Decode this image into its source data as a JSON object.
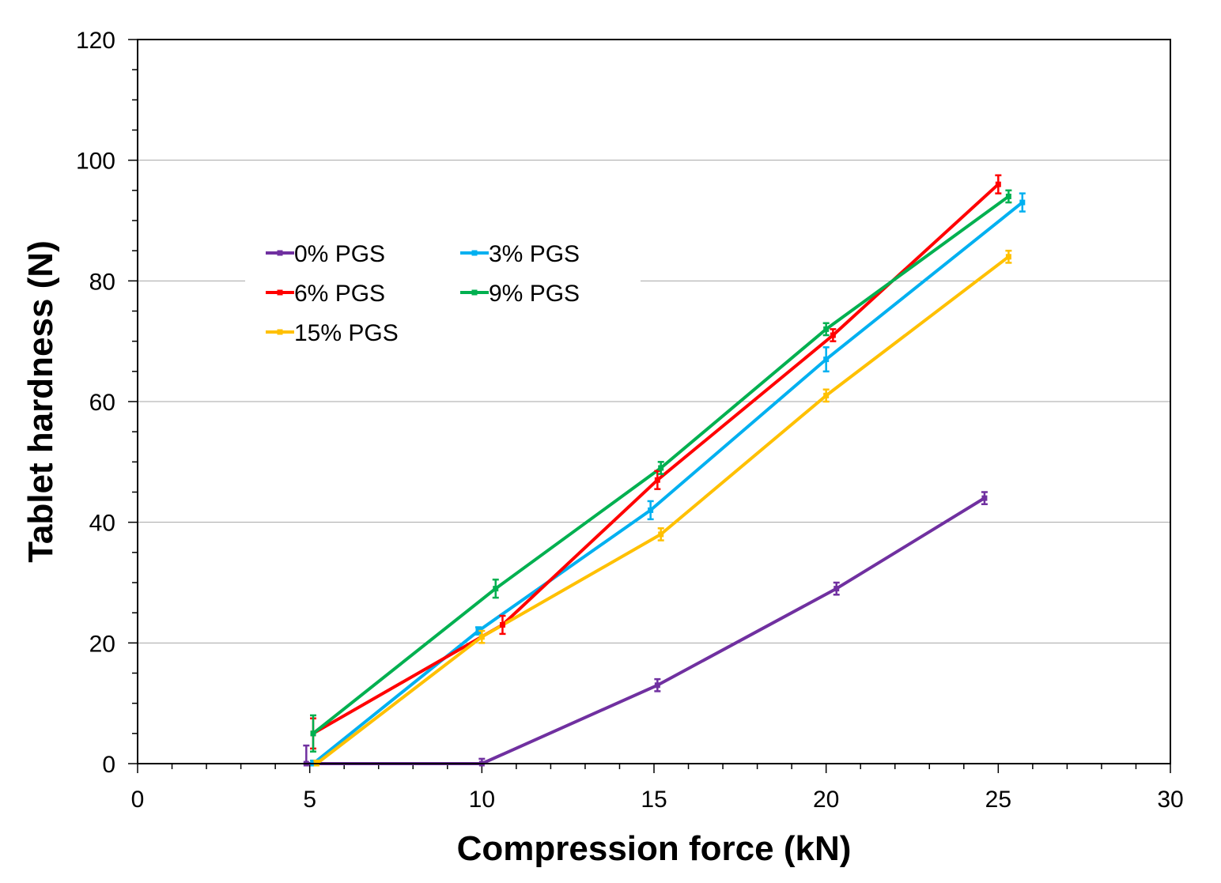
{
  "chart_data": {
    "type": "line",
    "title": "",
    "xlabel": "Compression force (kN)",
    "ylabel": "Tablet hardness (N)",
    "xlim": [
      0,
      30
    ],
    "ylim": [
      0,
      120
    ],
    "xticks": [
      0,
      5,
      10,
      15,
      20,
      25,
      30
    ],
    "yticks": [
      0,
      20,
      40,
      60,
      80,
      100,
      120
    ],
    "grid": "horizontal major",
    "legend_position": "upper-left",
    "series": [
      {
        "name": "0% PGS",
        "color": "#7030a0",
        "x": [
          4.9,
          10.0,
          15.1,
          20.3,
          24.6
        ],
        "y": [
          0,
          0,
          13,
          29,
          44
        ],
        "err": [
          3,
          0.8,
          1,
          1,
          1
        ]
      },
      {
        "name": "3% PGS",
        "color": "#00b0f0",
        "x": [
          5.1,
          9.9,
          14.9,
          20.0,
          25.7
        ],
        "y": [
          0,
          22,
          42,
          67,
          93
        ],
        "err": [
          0.5,
          0.6,
          1.5,
          2,
          1.5
        ]
      },
      {
        "name": "6% PGS",
        "color": "#ff0000",
        "x": [
          5.1,
          10.6,
          15.1,
          20.2,
          25.0
        ],
        "y": [
          5,
          23,
          47,
          71,
          96
        ],
        "err": [
          2.5,
          1.5,
          1.5,
          1,
          1.5
        ]
      },
      {
        "name": "9% PGS",
        "color": "#00b050",
        "x": [
          5.1,
          10.4,
          15.2,
          20.0,
          25.3
        ],
        "y": [
          5,
          29,
          49,
          72,
          94
        ],
        "err": [
          3,
          1.5,
          1,
          1,
          1
        ]
      },
      {
        "name": "15% PGS",
        "color": "#ffc000",
        "x": [
          5.2,
          10.0,
          15.2,
          20.0,
          25.3
        ],
        "y": [
          0,
          21,
          38,
          61,
          84
        ],
        "err": [
          0.5,
          1,
          1,
          1,
          1
        ]
      }
    ]
  }
}
